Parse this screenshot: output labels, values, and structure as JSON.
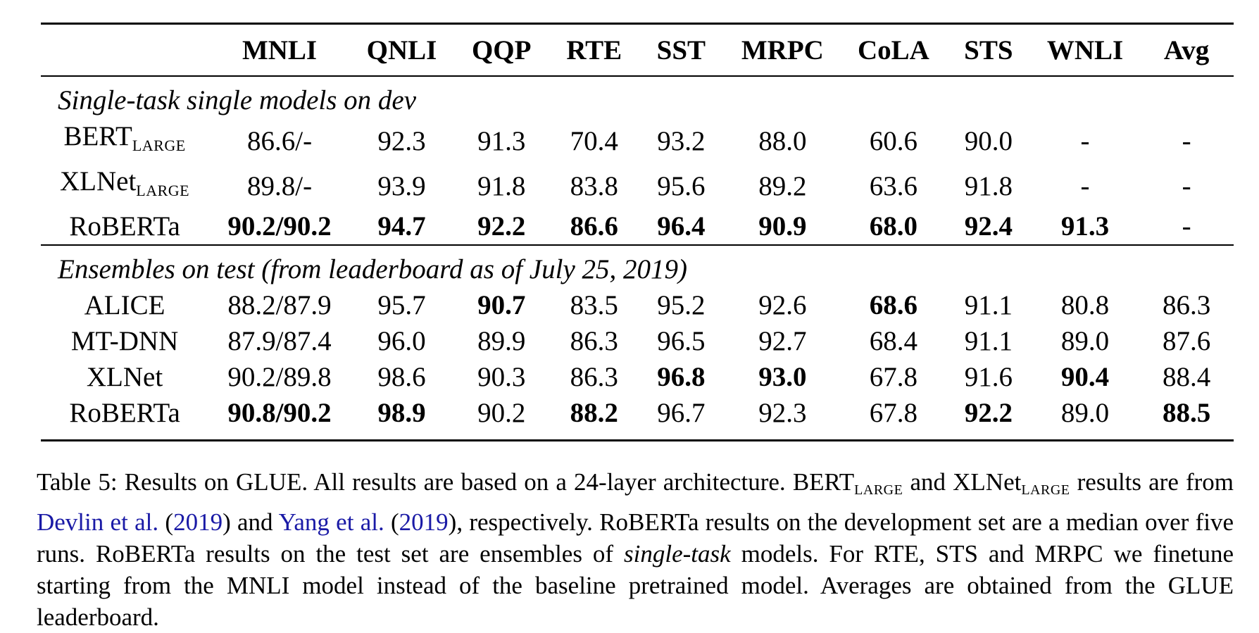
{
  "table": {
    "columns": [
      "",
      "MNLI",
      "QNLI",
      "QQP",
      "RTE",
      "SST",
      "MRPC",
      "CoLA",
      "STS",
      "WNLI",
      "Avg"
    ],
    "sections": [
      {
        "title": "Single-task single models on dev",
        "rows": [
          {
            "model": "BERT",
            "model_sub": "LARGE",
            "cells": [
              "86.6/-",
              "92.3",
              "91.3",
              "70.4",
              "93.2",
              "88.0",
              "60.6",
              "90.0",
              "-",
              "-"
            ],
            "bold": []
          },
          {
            "model": "XLNet",
            "model_sub": "LARGE",
            "cells": [
              "89.8/-",
              "93.9",
              "91.8",
              "83.8",
              "95.6",
              "89.2",
              "63.6",
              "91.8",
              "-",
              "-"
            ],
            "bold": []
          },
          {
            "model": "RoBERTa",
            "model_sub": "",
            "cells": [
              "90.2/90.2",
              "94.7",
              "92.2",
              "86.6",
              "96.4",
              "90.9",
              "68.0",
              "92.4",
              "91.3",
              "-"
            ],
            "bold": [
              0,
              1,
              2,
              3,
              4,
              5,
              6,
              7,
              8
            ]
          }
        ]
      },
      {
        "title": "Ensembles on test (from leaderboard as of July 25, 2019)",
        "rows": [
          {
            "model": "ALICE",
            "model_sub": "",
            "cells": [
              "88.2/87.9",
              "95.7",
              "90.7",
              "83.5",
              "95.2",
              "92.6",
              "68.6",
              "91.1",
              "80.8",
              "86.3"
            ],
            "bold": [
              2,
              6
            ]
          },
          {
            "model": "MT-DNN",
            "model_sub": "",
            "cells": [
              "87.9/87.4",
              "96.0",
              "89.9",
              "86.3",
              "96.5",
              "92.7",
              "68.4",
              "91.1",
              "89.0",
              "87.6"
            ],
            "bold": []
          },
          {
            "model": "XLNet",
            "model_sub": "",
            "cells": [
              "90.2/89.8",
              "98.6",
              "90.3",
              "86.3",
              "96.8",
              "93.0",
              "67.8",
              "91.6",
              "90.4",
              "88.4"
            ],
            "bold": [
              4,
              5,
              8
            ]
          },
          {
            "model": "RoBERTa",
            "model_sub": "",
            "cells": [
              "90.8/90.2",
              "98.9",
              "90.2",
              "88.2",
              "96.7",
              "92.3",
              "67.8",
              "92.2",
              "89.0",
              "88.5"
            ],
            "bold": [
              0,
              1,
              3,
              7,
              9
            ]
          }
        ]
      }
    ]
  },
  "caption": {
    "label": "Table 5:",
    "t1": "Results on GLUE. All results are based on a 24-layer architecture.",
    "bert": "BERT",
    "large1": "LARGE",
    "and1": "and",
    "xlnet": "XLNet",
    "large2": "LARGE",
    "t2": "results are from",
    "cite1_name": "Devlin et al.",
    "cite1_year": "2019",
    "and2": "and",
    "cite2_name": "Yang et al.",
    "cite2_year": "2019",
    "t3": ", respectively. RoBERTa results on the development set are a median over five runs. RoBERTa results on the test set are ensembles of",
    "italic": "single-task",
    "t4": "models. For RTE, STS and MRPC we finetune starting from the MNLI model instead of the baseline pretrained model. Averages are obtained from the GLUE leaderboard."
  }
}
